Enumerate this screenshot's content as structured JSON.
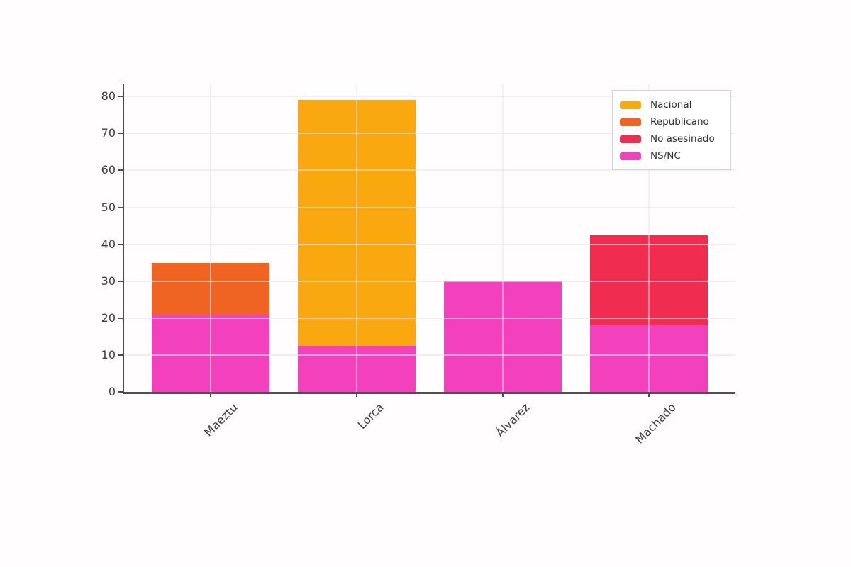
{
  "chart_data": {
    "type": "bar",
    "stacked": true,
    "title": "",
    "xlabel": "",
    "ylabel": "",
    "categories": [
      "Maeztu",
      "Lorca",
      "Álvarez",
      "Machado"
    ],
    "series": [
      {
        "name": "Nacional",
        "color": "#F9A90F",
        "values": [
          0,
          66.5,
          0,
          0
        ]
      },
      {
        "name": "Republicano",
        "color": "#EF6423",
        "values": [
          14,
          0,
          0,
          0
        ]
      },
      {
        "name": "No asesinado",
        "color": "#F02C50",
        "values": [
          0,
          0,
          0,
          24.5
        ]
      },
      {
        "name": "NS/NC",
        "color": "#F341BE",
        "values": [
          21,
          12.5,
          30,
          18
        ]
      }
    ],
    "bars": [
      {
        "category": "Maeztu",
        "segments": [
          {
            "series": "NS/NC",
            "value": 21
          },
          {
            "series": "Republicano",
            "value": 14
          }
        ]
      },
      {
        "category": "Lorca",
        "segments": [
          {
            "series": "NS/NC",
            "value": 12.5
          },
          {
            "series": "Nacional",
            "value": 66.5
          }
        ]
      },
      {
        "category": "Álvarez",
        "segments": [
          {
            "series": "NS/NC",
            "value": 30
          }
        ]
      },
      {
        "category": "Machado",
        "segments": [
          {
            "series": "NS/NC",
            "value": 18
          },
          {
            "series": "No asesinado",
            "value": 24.5
          }
        ]
      }
    ],
    "bar_totals": [
      35,
      79,
      30,
      42.5
    ],
    "yticks": [
      0,
      10,
      20,
      30,
      40,
      50,
      60,
      70,
      80
    ],
    "ylim": [
      0,
      83.5
    ],
    "grid": true,
    "legend_position": "top-right",
    "legend_items": [
      {
        "label": "Nacional",
        "color": "#F9A90F"
      },
      {
        "label": "Republicano",
        "color": "#EF6423"
      },
      {
        "label": "No asesinado",
        "color": "#F02C50"
      },
      {
        "label": "NS/NC",
        "color": "#F341BE"
      }
    ]
  }
}
